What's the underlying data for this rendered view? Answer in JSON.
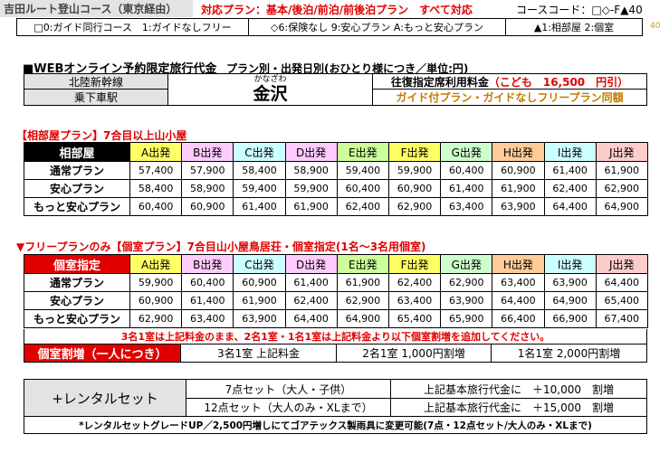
{
  "top": {
    "route": "吉田ルート登山コース（東京経由）",
    "plans": "対応プラン：基本/後泊/前泊/前後泊プラン　すべて対応",
    "course_code": "コースコード：□◇-F▲40",
    "code_num": "40",
    "opt1": "□0:ガイド同行コース　1:ガイドなしフリー",
    "opt2": "◇6:保険なし 9:安心プラン A:もっと安心プラン",
    "opt3": "▲1:相部屋 2:個室"
  },
  "fare_header": {
    "title": "■WEBオンライン予約限定旅行代金",
    "subtitle": "プラン別・出発日別(おひとり様につき／単位:円)",
    "line": "北陸新幹線",
    "station_label": "乗下車駅",
    "station_ruby": "かなざわ",
    "station": "金沢",
    "fare_label": "往復指定席利用料金",
    "child_fare": "（こども　16,500　円引）",
    "guide_note": "ガイド付プラン・ガイドなしフリープラン同額"
  },
  "section1": {
    "title": "【相部屋プラン】7合目以上山小屋",
    "corner": "相部屋",
    "headers": [
      "A出発",
      "B出発",
      "C出発",
      "D出発",
      "E出発",
      "F出発",
      "G出発",
      "H出発",
      "I出発",
      "J出発"
    ],
    "rows": [
      {
        "label": "通常プラン",
        "values": [
          "57,400",
          "57,900",
          "58,400",
          "58,900",
          "59,400",
          "59,900",
          "60,400",
          "60,900",
          "61,400",
          "61,900"
        ]
      },
      {
        "label": "安心プラン",
        "values": [
          "58,400",
          "58,900",
          "59,400",
          "59,900",
          "60,400",
          "60,900",
          "61,400",
          "61,900",
          "62,400",
          "62,900"
        ]
      },
      {
        "label": "もっと安心プラン",
        "values": [
          "60,400",
          "60,900",
          "61,400",
          "61,900",
          "62,400",
          "62,900",
          "63,400",
          "63,900",
          "64,400",
          "64,900"
        ]
      }
    ]
  },
  "section2": {
    "title": "▼フリープランのみ【個室プラン】7合目山小屋鳥居荘・個室指定(1名～3名用個室)",
    "corner": "個室指定",
    "headers": [
      "A出発",
      "B出発",
      "C出発",
      "D出発",
      "E出発",
      "F出発",
      "G出発",
      "H出発",
      "I出発",
      "J出発"
    ],
    "rows": [
      {
        "label": "通常プラン",
        "values": [
          "59,900",
          "60,400",
          "60,900",
          "61,400",
          "61,900",
          "62,400",
          "62,900",
          "63,400",
          "63,900",
          "64,400"
        ]
      },
      {
        "label": "安心プラン",
        "values": [
          "60,900",
          "61,400",
          "61,900",
          "62,400",
          "62,900",
          "63,400",
          "63,900",
          "64,400",
          "64,900",
          "65,400"
        ]
      },
      {
        "label": "もっと安心プラン",
        "values": [
          "62,900",
          "63,400",
          "63,900",
          "64,400",
          "64,900",
          "65,400",
          "65,900",
          "66,400",
          "66,900",
          "67,400"
        ]
      }
    ],
    "note": "3名1室は上記料金のまま、2名1室・1名1室は上記料金より以下個室割増を追加してください。",
    "surcharge_label": "個室割増（一人につき）",
    "surcharge": [
      "3名1室 上記料金",
      "2名1室 1,000円割増",
      "1名1室 2,000円割増"
    ]
  },
  "rental": {
    "label": "+レンタルセット",
    "rows": [
      {
        "set": "7点セット（大人・子供）",
        "desc": "上記基本旅行代金に　＋10,000　割増"
      },
      {
        "set": "12点セット（大人のみ・XLまで）",
        "desc": "上記基本旅行代金に　＋15,000　割増"
      }
    ],
    "footnote": "*レンタルセットグレードUP／2,500円増しにてゴアテックス製雨具に変更可能(7点・12点セット/大人のみ・XLまで)"
  }
}
